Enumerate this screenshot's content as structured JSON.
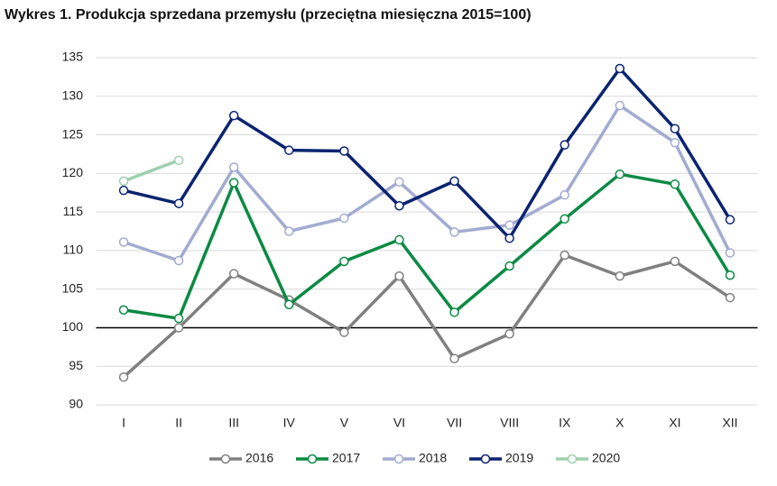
{
  "chart_data": {
    "type": "line",
    "title": "Wykres 1. Produkcja sprzedana przemysłu (przeciętna miesięczna 2015=100)",
    "categories": [
      "I",
      "II",
      "III",
      "IV",
      "V",
      "VI",
      "VII",
      "VIII",
      "IX",
      "X",
      "XI",
      "XII"
    ],
    "series": [
      {
        "name": "2016",
        "color": "#808080",
        "values": [
          93.6,
          100.0,
          107.0,
          103.6,
          99.4,
          106.7,
          96.0,
          99.2,
          109.4,
          106.7,
          108.6,
          103.9
        ]
      },
      {
        "name": "2017",
        "color": "#0b8a44",
        "values": [
          102.3,
          101.2,
          118.8,
          103.0,
          108.6,
          111.4,
          102.0,
          108.0,
          114.1,
          119.9,
          118.6,
          106.8
        ]
      },
      {
        "name": "2018",
        "color": "#a2abd0",
        "values": [
          111.1,
          108.7,
          120.8,
          112.5,
          114.2,
          118.9,
          112.4,
          113.3,
          117.2,
          128.8,
          124.0,
          109.7
        ]
      },
      {
        "name": "2019",
        "color": "#0b2370",
        "values": [
          117.8,
          116.1,
          127.5,
          123.0,
          122.9,
          115.8,
          119.0,
          111.6,
          123.7,
          133.6,
          125.8,
          114.0
        ]
      },
      {
        "name": "2020",
        "color": "#9dd0ad",
        "values": [
          119.0,
          121.7,
          null,
          null,
          null,
          null,
          null,
          null,
          null,
          null,
          null,
          null
        ]
      }
    ],
    "ylim": [
      90,
      135
    ],
    "yticks": [
      90,
      95,
      100,
      105,
      110,
      115,
      120,
      125,
      130,
      135
    ],
    "grid": true,
    "reference_line": 100,
    "legend": "bottom"
  }
}
